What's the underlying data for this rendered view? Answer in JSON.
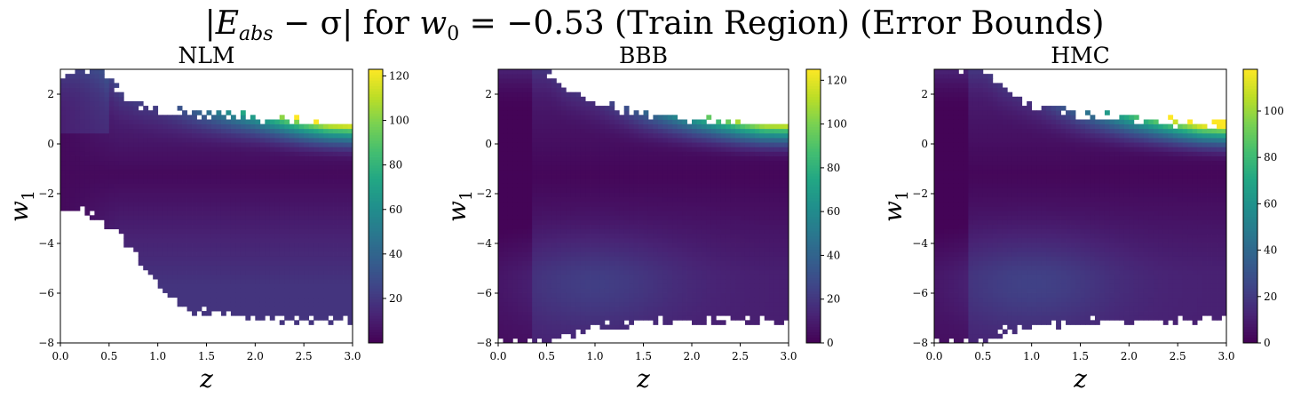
{
  "suptitle": {
    "pre": "|",
    "e": "E",
    "e_sub": "abs",
    "mid": " − σ| for ",
    "w": "w",
    "w_sub": "0",
    "post": " = −0.53 (Train Region) (Error Bounds)"
  },
  "chart_data": [
    {
      "type": "heatmap",
      "title": "NLM",
      "xlabel": "z",
      "ylabel_base": "w",
      "ylabel_sub": "1",
      "xlim": [
        0.0,
        3.0
      ],
      "ylim": [
        -8,
        3
      ],
      "xticks": [
        "0.0",
        "0.5",
        "1.0",
        "1.5",
        "2.0",
        "2.5",
        "3.0"
      ],
      "yticks": [
        "−8",
        "−6",
        "−4",
        "−2",
        "0",
        "2"
      ],
      "colorbar_range": [
        0,
        123
      ],
      "colorbar_ticks": [
        "20",
        "40",
        "60",
        "80",
        "100",
        "120"
      ],
      "grid": false,
      "colormap": "viridis",
      "valid_region": {
        "upper_w1": [
          [
            0.0,
            2.6
          ],
          [
            0.2,
            3.0
          ],
          [
            0.4,
            3.0
          ],
          [
            0.6,
            2.1
          ],
          [
            0.8,
            1.6
          ],
          [
            1.0,
            1.3
          ],
          [
            1.5,
            1.2
          ],
          [
            2.0,
            1.1
          ],
          [
            2.5,
            0.9
          ],
          [
            3.0,
            0.8
          ]
        ],
        "lower_w1": [
          [
            0.0,
            -2.5
          ],
          [
            0.2,
            -2.7
          ],
          [
            0.4,
            -3.0
          ],
          [
            0.6,
            -3.6
          ],
          [
            0.8,
            -4.6
          ],
          [
            1.0,
            -5.6
          ],
          [
            1.2,
            -6.4
          ],
          [
            1.5,
            -6.8
          ],
          [
            2.0,
            -7.0
          ],
          [
            3.0,
            -7.1
          ]
        ]
      },
      "approx_values": [
        {
          "z": 2.6,
          "w1": 0.9,
          "value": 120
        },
        {
          "z": 2.0,
          "w1": 1.0,
          "value": 85
        },
        {
          "z": 1.5,
          "w1": 0.9,
          "value": 55
        },
        {
          "z": 1.0,
          "w1": -1.2,
          "value": 3
        },
        {
          "z": 1.5,
          "w1": -4.5,
          "value": 15
        },
        {
          "z": 2.5,
          "w1": -6.5,
          "value": 10
        }
      ]
    },
    {
      "type": "heatmap",
      "title": "BBB",
      "xlabel": "z",
      "ylabel_base": "w",
      "ylabel_sub": "1",
      "xlim": [
        0.0,
        3.0
      ],
      "ylim": [
        -8,
        3
      ],
      "xticks": [
        "0.0",
        "0.5",
        "1.0",
        "1.5",
        "2.0",
        "2.5",
        "3.0"
      ],
      "yticks": [
        "−8",
        "−6",
        "−4",
        "−2",
        "0",
        "2"
      ],
      "colorbar_range": [
        0,
        125
      ],
      "colorbar_ticks": [
        "0",
        "20",
        "40",
        "60",
        "80",
        "100",
        "120"
      ],
      "grid": false,
      "colormap": "viridis",
      "valid_region": {
        "upper_w1": [
          [
            0.0,
            3.0
          ],
          [
            0.5,
            3.0
          ],
          [
            0.7,
            2.2
          ],
          [
            1.0,
            1.6
          ],
          [
            1.5,
            1.2
          ],
          [
            2.0,
            1.0
          ],
          [
            2.5,
            0.85
          ],
          [
            3.0,
            0.8
          ]
        ],
        "lower_w1": [
          [
            0.0,
            -8.0
          ],
          [
            0.5,
            -8.0
          ],
          [
            0.7,
            -7.7
          ],
          [
            1.0,
            -7.4
          ],
          [
            1.5,
            -7.2
          ],
          [
            2.0,
            -7.1
          ],
          [
            3.0,
            -7.1
          ]
        ]
      },
      "approx_values": [
        {
          "z": 2.8,
          "w1": 0.7,
          "value": 120
        },
        {
          "z": 2.0,
          "w1": 0.8,
          "value": 70
        },
        {
          "z": 1.5,
          "w1": -1.2,
          "value": 2
        },
        {
          "z": 1.0,
          "w1": -5.5,
          "value": 25
        },
        {
          "z": 2.5,
          "w1": -6.5,
          "value": 18
        }
      ]
    },
    {
      "type": "heatmap",
      "title": "HMC",
      "xlabel": "z",
      "ylabel_base": "w",
      "ylabel_sub": "1",
      "xlim": [
        0.0,
        3.0
      ],
      "ylim": [
        -8,
        3
      ],
      "xticks": [
        "0.0",
        "0.5",
        "1.0",
        "1.5",
        "2.0",
        "2.5",
        "3.0"
      ],
      "yticks": [
        "−8",
        "−6",
        "−4",
        "−2",
        "0",
        "2"
      ],
      "colorbar_range": [
        0,
        118
      ],
      "colorbar_ticks": [
        "0",
        "20",
        "40",
        "60",
        "80",
        "100"
      ],
      "grid": false,
      "colormap": "viridis",
      "valid_region": {
        "upper_w1": [
          [
            0.0,
            3.0
          ],
          [
            0.5,
            3.0
          ],
          [
            0.7,
            2.3
          ],
          [
            1.0,
            1.6
          ],
          [
            1.5,
            1.2
          ],
          [
            2.0,
            1.0
          ],
          [
            2.5,
            0.85
          ],
          [
            3.0,
            0.75
          ]
        ],
        "lower_w1": [
          [
            0.0,
            -8.0
          ],
          [
            0.5,
            -8.0
          ],
          [
            0.7,
            -7.6
          ],
          [
            1.0,
            -7.3
          ],
          [
            1.5,
            -7.2
          ],
          [
            2.0,
            -7.1
          ],
          [
            3.0,
            -7.1
          ]
        ]
      },
      "approx_values": [
        {
          "z": 2.7,
          "w1": 0.7,
          "value": 110
        },
        {
          "z": 2.0,
          "w1": 0.8,
          "value": 65
        },
        {
          "z": 1.5,
          "w1": -1.2,
          "value": 2
        },
        {
          "z": 1.0,
          "w1": -5.5,
          "value": 20
        },
        {
          "z": 2.5,
          "w1": -6.5,
          "value": 15
        }
      ]
    }
  ]
}
